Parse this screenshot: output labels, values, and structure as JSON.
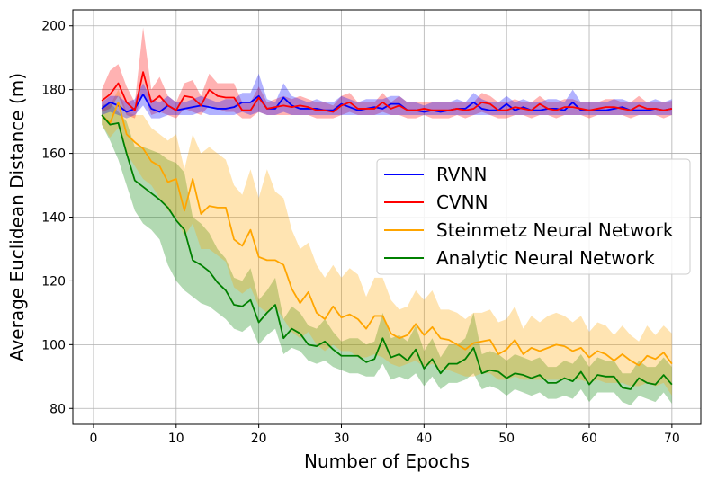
{
  "chart_data": {
    "type": "line",
    "title": "",
    "xlabel": "Number of Epochs",
    "ylabel": "Average Euclidean Distance (m)",
    "xlim": [
      -2.5,
      73.5
    ],
    "ylim": [
      75,
      205
    ],
    "xticks": [
      0,
      10,
      20,
      30,
      40,
      50,
      60,
      70
    ],
    "yticks": [
      80,
      100,
      120,
      140,
      160,
      180,
      200
    ],
    "grid": true,
    "legend_position": "center-right",
    "x": [
      1,
      2,
      3,
      4,
      5,
      6,
      7,
      8,
      9,
      10,
      11,
      12,
      13,
      14,
      15,
      16,
      17,
      18,
      19,
      20,
      21,
      22,
      23,
      24,
      25,
      26,
      27,
      28,
      29,
      30,
      31,
      32,
      33,
      34,
      35,
      36,
      37,
      38,
      39,
      40,
      41,
      42,
      43,
      44,
      45,
      46,
      47,
      48,
      49,
      50,
      51,
      52,
      53,
      54,
      55,
      56,
      57,
      58,
      59,
      60,
      61,
      62,
      63,
      64,
      65,
      66,
      67,
      68,
      69,
      70
    ],
    "series": [
      {
        "name": "RVNN",
        "color": "#0000ff",
        "values": [
          174,
          176,
          175,
          173,
          174,
          178.5,
          174,
          173,
          175,
          173.5,
          174,
          174.5,
          175,
          174.5,
          174,
          174,
          174.5,
          176,
          176,
          178,
          174,
          174,
          177.5,
          175,
          174,
          174,
          174,
          173.5,
          173.5,
          175.5,
          174.5,
          173.5,
          174,
          174.5,
          174,
          175.5,
          175.5,
          173.5,
          173.5,
          173,
          173.5,
          173,
          173.5,
          174,
          174,
          176,
          174,
          173.5,
          173.5,
          175.5,
          173.5,
          174.5,
          173.5,
          173.5,
          174,
          174,
          173.5,
          176,
          173.5,
          173.5,
          173.5,
          173.5,
          174,
          174.5,
          173.5,
          173.5,
          173.5,
          174,
          173.5,
          174
        ],
        "lower": [
          172,
          173,
          172,
          171,
          172,
          175,
          171,
          171,
          172,
          172,
          172,
          172,
          173,
          172,
          172,
          172,
          172,
          173,
          172,
          173,
          172,
          172,
          173,
          172,
          172,
          172,
          172,
          172,
          172,
          172,
          172,
          172,
          172,
          172,
          172,
          172,
          172,
          172,
          172,
          172,
          172,
          172,
          172,
          172,
          172,
          172,
          172,
          172,
          172,
          172,
          172,
          172,
          172,
          172,
          172,
          172,
          172,
          172,
          172,
          172,
          172,
          172,
          172,
          172,
          172,
          172,
          172,
          172,
          172,
          172
        ],
        "upper": [
          176,
          178,
          178,
          176,
          177,
          182,
          177,
          176,
          178,
          176,
          176,
          177,
          178,
          177,
          176,
          177,
          177,
          179,
          179,
          185,
          177,
          176,
          182,
          178,
          177,
          176,
          177,
          176,
          176,
          178,
          177,
          176,
          177,
          177,
          177,
          178,
          178,
          176,
          176,
          175,
          176,
          176,
          176,
          177,
          176,
          179,
          177,
          176,
          176,
          178,
          176,
          177,
          176,
          176,
          177,
          177,
          176,
          180,
          176,
          176,
          176,
          176,
          177,
          177,
          176,
          176,
          176,
          177,
          176,
          177
        ]
      },
      {
        "name": "CVNN",
        "color": "#ff0000",
        "values": [
          176.5,
          178.5,
          182,
          176,
          173.5,
          185.5,
          176,
          178,
          175,
          173.5,
          178,
          177.5,
          175,
          180,
          178,
          177.5,
          177.5,
          173.5,
          173.5,
          177.5,
          174,
          174.5,
          175,
          174.5,
          175,
          174.5,
          173.5,
          173.5,
          173,
          175,
          176,
          174,
          174,
          174,
          176,
          174,
          175,
          173.5,
          173.5,
          174,
          173.5,
          173.5,
          173.5,
          174,
          173.5,
          174,
          176,
          175.5,
          173.5,
          173.5,
          174.5,
          174,
          173.5,
          175.5,
          174,
          173.5,
          174.5,
          174.5,
          174,
          173.5,
          174,
          174.5,
          174.5,
          174,
          173.5,
          175,
          174,
          174,
          173.5,
          174
        ],
        "lower": [
          173,
          174,
          178,
          172,
          171,
          179,
          172,
          173,
          172,
          171,
          174,
          173,
          172,
          175,
          174,
          173,
          173,
          171,
          171,
          173,
          172,
          172,
          172,
          172,
          172,
          172,
          171,
          171,
          171,
          172,
          173,
          172,
          172,
          172,
          173,
          172,
          172,
          171,
          171,
          172,
          171,
          171,
          171,
          172,
          171,
          172,
          173,
          172,
          171,
          171,
          172,
          172,
          171,
          172,
          172,
          171,
          172,
          172,
          172,
          171,
          172,
          172,
          172,
          172,
          171,
          172,
          172,
          172,
          171,
          172
        ],
        "upper": [
          180,
          186,
          188,
          181,
          176,
          199.5,
          180,
          184,
          178,
          176,
          182,
          183,
          178,
          185,
          182,
          182,
          182,
          176,
          176,
          181,
          176,
          177,
          178,
          177,
          178,
          177,
          176,
          176,
          175,
          178,
          179,
          176,
          176,
          176,
          179,
          176,
          178,
          176,
          176,
          176,
          176,
          176,
          176,
          176,
          176,
          176,
          179,
          178,
          176,
          176,
          177,
          176,
          176,
          178,
          176,
          176,
          177,
          177,
          176,
          176,
          176,
          177,
          177,
          176,
          176,
          178,
          176,
          176,
          176,
          176.5
        ]
      },
      {
        "name": "Steinmetz Neural Network",
        "color": "#ffa500",
        "values": [
          172,
          169.5,
          176,
          166,
          163.5,
          161.5,
          157.5,
          156,
          151,
          152,
          142,
          152,
          141,
          143.5,
          143,
          143,
          133,
          131,
          136,
          127.5,
          126.5,
          126.5,
          125,
          117.5,
          113,
          116.5,
          110,
          108,
          112,
          108.5,
          109.5,
          108,
          105,
          109,
          109,
          103.5,
          102,
          103,
          106.5,
          103,
          105.5,
          102,
          101.5,
          100,
          98.5,
          100.5,
          101,
          101.5,
          97,
          98.5,
          101.5,
          97,
          99,
          98,
          99,
          100,
          99.5,
          98,
          99,
          96,
          98,
          97,
          95,
          97,
          95,
          93.5,
          96.5,
          95.5,
          97.5,
          94
        ],
        "lower": [
          169,
          165,
          168,
          160,
          156,
          152,
          150,
          146,
          142,
          140,
          134,
          138,
          130,
          130,
          128,
          126,
          118,
          116,
          118,
          112,
          110,
          112,
          108,
          104,
          102,
          104,
          100,
          98,
          100,
          98,
          98,
          96,
          96,
          97,
          96,
          94,
          93,
          94,
          95,
          93,
          94,
          92,
          92,
          91,
          90,
          90,
          91,
          91,
          89,
          89,
          90,
          89,
          89,
          89,
          89,
          89,
          89,
          89,
          89,
          88,
          89,
          88,
          88,
          88,
          87,
          87,
          88,
          87,
          88,
          84
        ],
        "upper": [
          174,
          175,
          180,
          173,
          172,
          172,
          168,
          166,
          164,
          166,
          155,
          166,
          160,
          162,
          160,
          158,
          150,
          147,
          155,
          146,
          155,
          148,
          146,
          136,
          130,
          132,
          125,
          121,
          125,
          121,
          124,
          122,
          115,
          121,
          121,
          114,
          111,
          112,
          117,
          114,
          117,
          111,
          111,
          110,
          108,
          110,
          110,
          111,
          107,
          108,
          112,
          105,
          109,
          107,
          109,
          110,
          109,
          107,
          109,
          104,
          107,
          106,
          103,
          106,
          103,
          101,
          106,
          103,
          106,
          103.5
        ]
      },
      {
        "name": "Analytic Neural Network",
        "color": "#008000",
        "values": [
          172,
          169,
          169.5,
          160,
          151.5,
          149.5,
          147.5,
          145.5,
          143,
          139,
          136,
          126.5,
          125,
          123,
          119.5,
          117,
          112.5,
          112,
          114,
          107,
          110,
          112.5,
          102,
          105,
          103.5,
          100,
          99.5,
          101,
          98.5,
          96.5,
          96.5,
          96.5,
          94.5,
          95.5,
          102,
          96,
          97,
          95,
          98.5,
          92.5,
          95.5,
          91,
          94,
          94,
          95.5,
          99,
          91,
          92,
          91.5,
          89.5,
          91,
          90.5,
          89.5,
          90.5,
          88,
          88,
          89.5,
          88.5,
          91.5,
          87.5,
          90.5,
          90,
          90,
          86.5,
          86,
          89.5,
          88,
          87.5,
          90.5,
          87.5
        ],
        "lower": [
          169,
          164,
          158,
          150,
          142,
          138,
          136,
          133,
          125,
          120,
          117,
          115,
          113,
          112,
          110,
          108,
          105,
          104,
          106,
          100,
          103,
          105,
          97,
          99,
          98,
          95,
          94,
          95,
          93,
          92,
          91,
          91,
          90,
          90,
          94,
          89,
          90,
          89,
          91,
          87,
          90,
          86,
          88,
          88,
          89,
          91,
          86,
          87,
          86,
          84,
          86,
          85,
          84,
          85,
          83,
          83,
          84,
          83,
          86,
          82,
          85,
          85,
          85,
          82,
          81,
          84,
          83,
          82,
          85,
          81.5
        ],
        "upper": [
          175,
          176,
          173,
          170,
          162,
          162,
          161,
          160,
          158,
          157,
          154,
          140,
          138,
          135,
          130,
          127,
          121,
          120,
          124,
          114,
          117,
          121,
          108,
          112,
          110,
          106,
          105,
          108,
          104,
          101,
          102,
          102,
          100,
          101,
          110,
          102,
          103,
          101,
          106,
          98,
          102,
          96,
          100,
          100,
          102,
          110,
          97,
          98,
          97,
          95,
          97,
          96,
          95,
          96,
          93,
          93,
          95,
          94,
          97,
          93,
          96,
          95,
          95,
          91,
          91,
          95,
          93,
          93,
          96,
          93
        ]
      }
    ]
  }
}
